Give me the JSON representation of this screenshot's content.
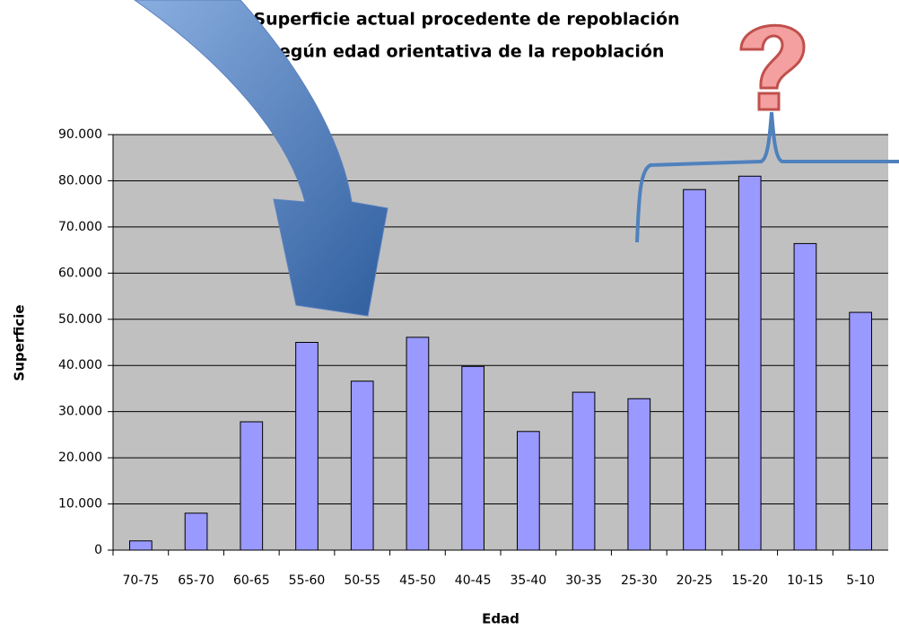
{
  "chart_data": {
    "type": "bar",
    "title": [
      "Superficie actual procedente de repoblación",
      "según edad orientativa de la repoblación"
    ],
    "x_label": "Edad",
    "y_label": "Superficie",
    "categories": [
      "70-75",
      "65-70",
      "60-65",
      "55-60",
      "50-55",
      "45-50",
      "40-45",
      "35-40",
      "30-35",
      "25-30",
      "20-25",
      "15-20",
      "10-15",
      "5-10"
    ],
    "values": [
      2000,
      8000,
      27800,
      45000,
      36600,
      46100,
      39800,
      25700,
      34200,
      32800,
      78100,
      81000,
      66400,
      51500
    ],
    "color": "#9999ff",
    "ylim": [
      0,
      90000
    ],
    "yticks": [
      0,
      {
        "value": 10000,
        "label": "10.000"
      },
      {
        "value": 20000,
        "label": "20.000"
      },
      {
        "value": 30000,
        "label": "30.000"
      },
      {
        "value": 40000,
        "label": "40.000"
      },
      {
        "value": 50000,
        "label": "50.000"
      },
      {
        "value": 60000,
        "label": "60.000"
      },
      {
        "value": 70000,
        "label": "70.000"
      },
      {
        "value": 80000,
        "label": "80.000"
      },
      {
        "value": 90000,
        "label": "90.000"
      }
    ],
    "grid": true
  }
}
